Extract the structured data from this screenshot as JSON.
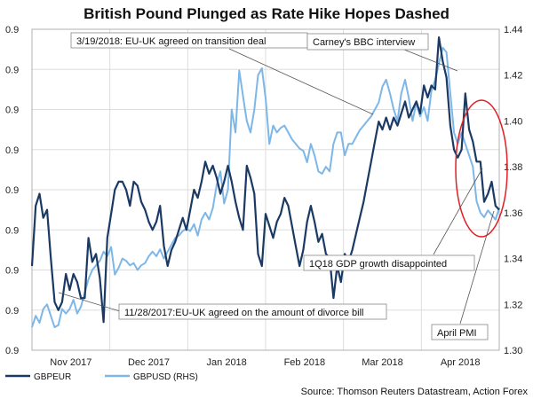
{
  "chart_data": {
    "type": "line",
    "title": "British Pound Plunged as Rate Hike Hopes Dashed",
    "x_ticks": [
      "Nov 2017",
      "Dec 2017",
      "Jan 2018",
      "Feb 2018",
      "Mar 2018",
      "Apr 2018"
    ],
    "left_axis": {
      "ticks": [
        "0.9",
        "0.9",
        "0.9",
        "0.9",
        "0.9",
        "0.9",
        "0.9",
        "0.9",
        "0.9"
      ],
      "ylim": [
        0,
        8
      ]
    },
    "right_axis": {
      "ticks": [
        "1.30",
        "1.32",
        "1.34",
        "1.36",
        "1.38",
        "1.40",
        "1.42",
        "1.44"
      ],
      "ylim": [
        1.3,
        1.44
      ]
    },
    "grid": true,
    "legend": {
      "position": "bottom-left"
    },
    "series": [
      {
        "name": "GBPEUR",
        "axis": "left",
        "color": "#1b3a63",
        "values": [
          2.1,
          3.6,
          3.9,
          3.3,
          3.5,
          2.3,
          1.2,
          1.0,
          1.2,
          1.9,
          1.5,
          1.9,
          1.7,
          1.3,
          1.3,
          2.8,
          2.2,
          2.4,
          1.8,
          0.7,
          2.8,
          3.4,
          4.0,
          4.2,
          4.2,
          4.0,
          3.6,
          4.2,
          4.1,
          3.7,
          3.5,
          3.2,
          3.0,
          3.2,
          3.6,
          2.6,
          2.1,
          2.5,
          2.7,
          3.0,
          3.3,
          3.0,
          3.5,
          4.0,
          3.8,
          4.2,
          4.7,
          4.4,
          4.6,
          4.3,
          3.9,
          4.2,
          4.6,
          4.2,
          3.7,
          3.3,
          3.0,
          4.6,
          4.3,
          3.9,
          2.4,
          2.1,
          3.4,
          3.1,
          2.8,
          3.2,
          3.4,
          3.8,
          3.6,
          3.1,
          2.6,
          2.1,
          2.5,
          3.2,
          3.6,
          3.2,
          2.7,
          2.9,
          2.4,
          2.3,
          1.3,
          2.1,
          1.7,
          2.4,
          2.2,
          2.5,
          2.9,
          3.3,
          3.7,
          4.2,
          4.7,
          5.2,
          5.7,
          5.5,
          5.8,
          5.5,
          5.8,
          5.6,
          5.9,
          6.2,
          5.8,
          6.0,
          6.2,
          5.9,
          6.6,
          6.3,
          6.6,
          6.5,
          7.8,
          7.2,
          6.8,
          5.6,
          5.0,
          4.8,
          5.0,
          6.4,
          5.5,
          5.2,
          4.7,
          4.7,
          3.7,
          3.9,
          4.2,
          3.6,
          3.5
        ]
      },
      {
        "name": "GBPUSD (RHS)",
        "axis": "right",
        "color": "#7db7e8",
        "values": [
          1.31,
          1.315,
          1.312,
          1.318,
          1.32,
          1.315,
          1.31,
          1.311,
          1.318,
          1.316,
          1.318,
          1.322,
          1.316,
          1.319,
          1.325,
          1.331,
          1.335,
          1.337,
          1.339,
          1.343,
          1.341,
          1.345,
          1.333,
          1.336,
          1.34,
          1.339,
          1.337,
          1.338,
          1.335,
          1.337,
          1.338,
          1.341,
          1.343,
          1.341,
          1.344,
          1.34,
          1.343,
          1.346,
          1.349,
          1.35,
          1.352,
          1.353,
          1.352,
          1.355,
          1.35,
          1.357,
          1.36,
          1.357,
          1.362,
          1.372,
          1.378,
          1.364,
          1.37,
          1.405,
          1.395,
          1.422,
          1.411,
          1.4,
          1.395,
          1.405,
          1.42,
          1.423,
          1.41,
          1.39,
          1.398,
          1.395,
          1.397,
          1.398,
          1.395,
          1.392,
          1.39,
          1.388,
          1.387,
          1.382,
          1.39,
          1.385,
          1.378,
          1.377,
          1.38,
          1.378,
          1.39,
          1.395,
          1.395,
          1.385,
          1.39,
          1.39,
          1.393,
          1.396,
          1.398,
          1.4,
          1.402,
          1.405,
          1.408,
          1.415,
          1.418,
          1.412,
          1.405,
          1.4,
          1.412,
          1.418,
          1.41,
          1.4,
          1.408,
          1.402,
          1.406,
          1.4,
          1.413,
          1.418,
          1.425,
          1.432,
          1.43,
          1.412,
          1.395,
          1.39,
          1.395,
          1.39,
          1.385,
          1.38,
          1.365,
          1.36,
          1.358,
          1.361,
          1.359,
          1.357,
          1.362
        ]
      }
    ],
    "annotations": [
      "3/19/2018: EU-UK agreed on transition deal",
      "Carney's BBC interview",
      "1Q18 GDP growth disappointed",
      "11/28/2017:EU-UK agreed on the amount of divorce bill",
      "April PMI"
    ],
    "source": "Source: Thomson Reuters Datastream, Action Forex"
  },
  "colors": {
    "axis_box": "#b0b0b0",
    "grid": "#dddddd",
    "highlight_ellipse": "#e01f26",
    "pointer_line": "#555555"
  }
}
